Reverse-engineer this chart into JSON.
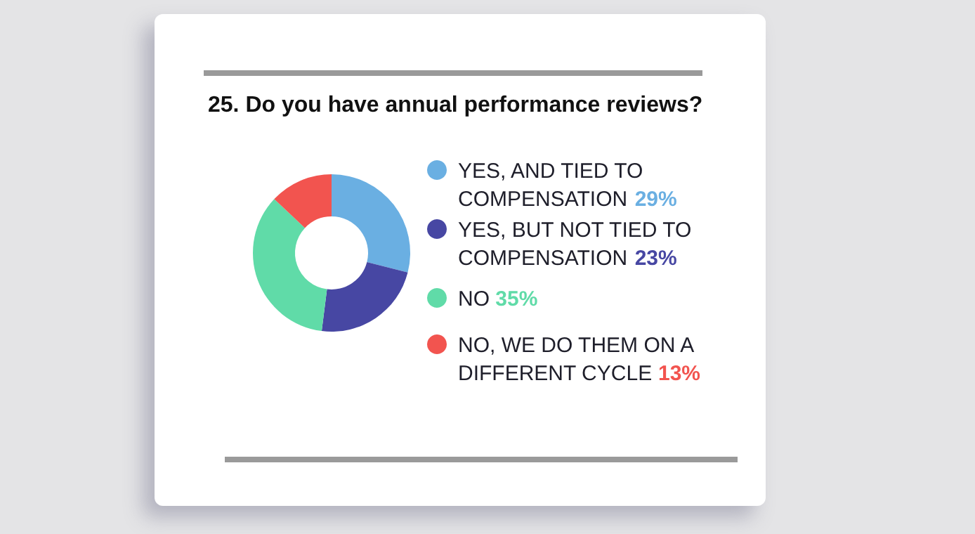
{
  "chart_data": {
    "type": "donut",
    "title": "25. Do you have annual performance reviews?",
    "categories": [
      "YES, AND TIED TO COMPENSATION",
      "YES, BUT NOT TIED TO COMPENSATION",
      "NO",
      "NO, WE DO THEM ON A DIFFERENT CYCLE"
    ],
    "values": [
      29,
      23,
      35,
      13
    ],
    "colors": [
      "#6aafe2",
      "#4747a3",
      "#60dba8",
      "#f2544f"
    ],
    "value_labels": [
      "29%",
      "23%",
      "35%",
      "13%"
    ],
    "legend": "right"
  }
}
